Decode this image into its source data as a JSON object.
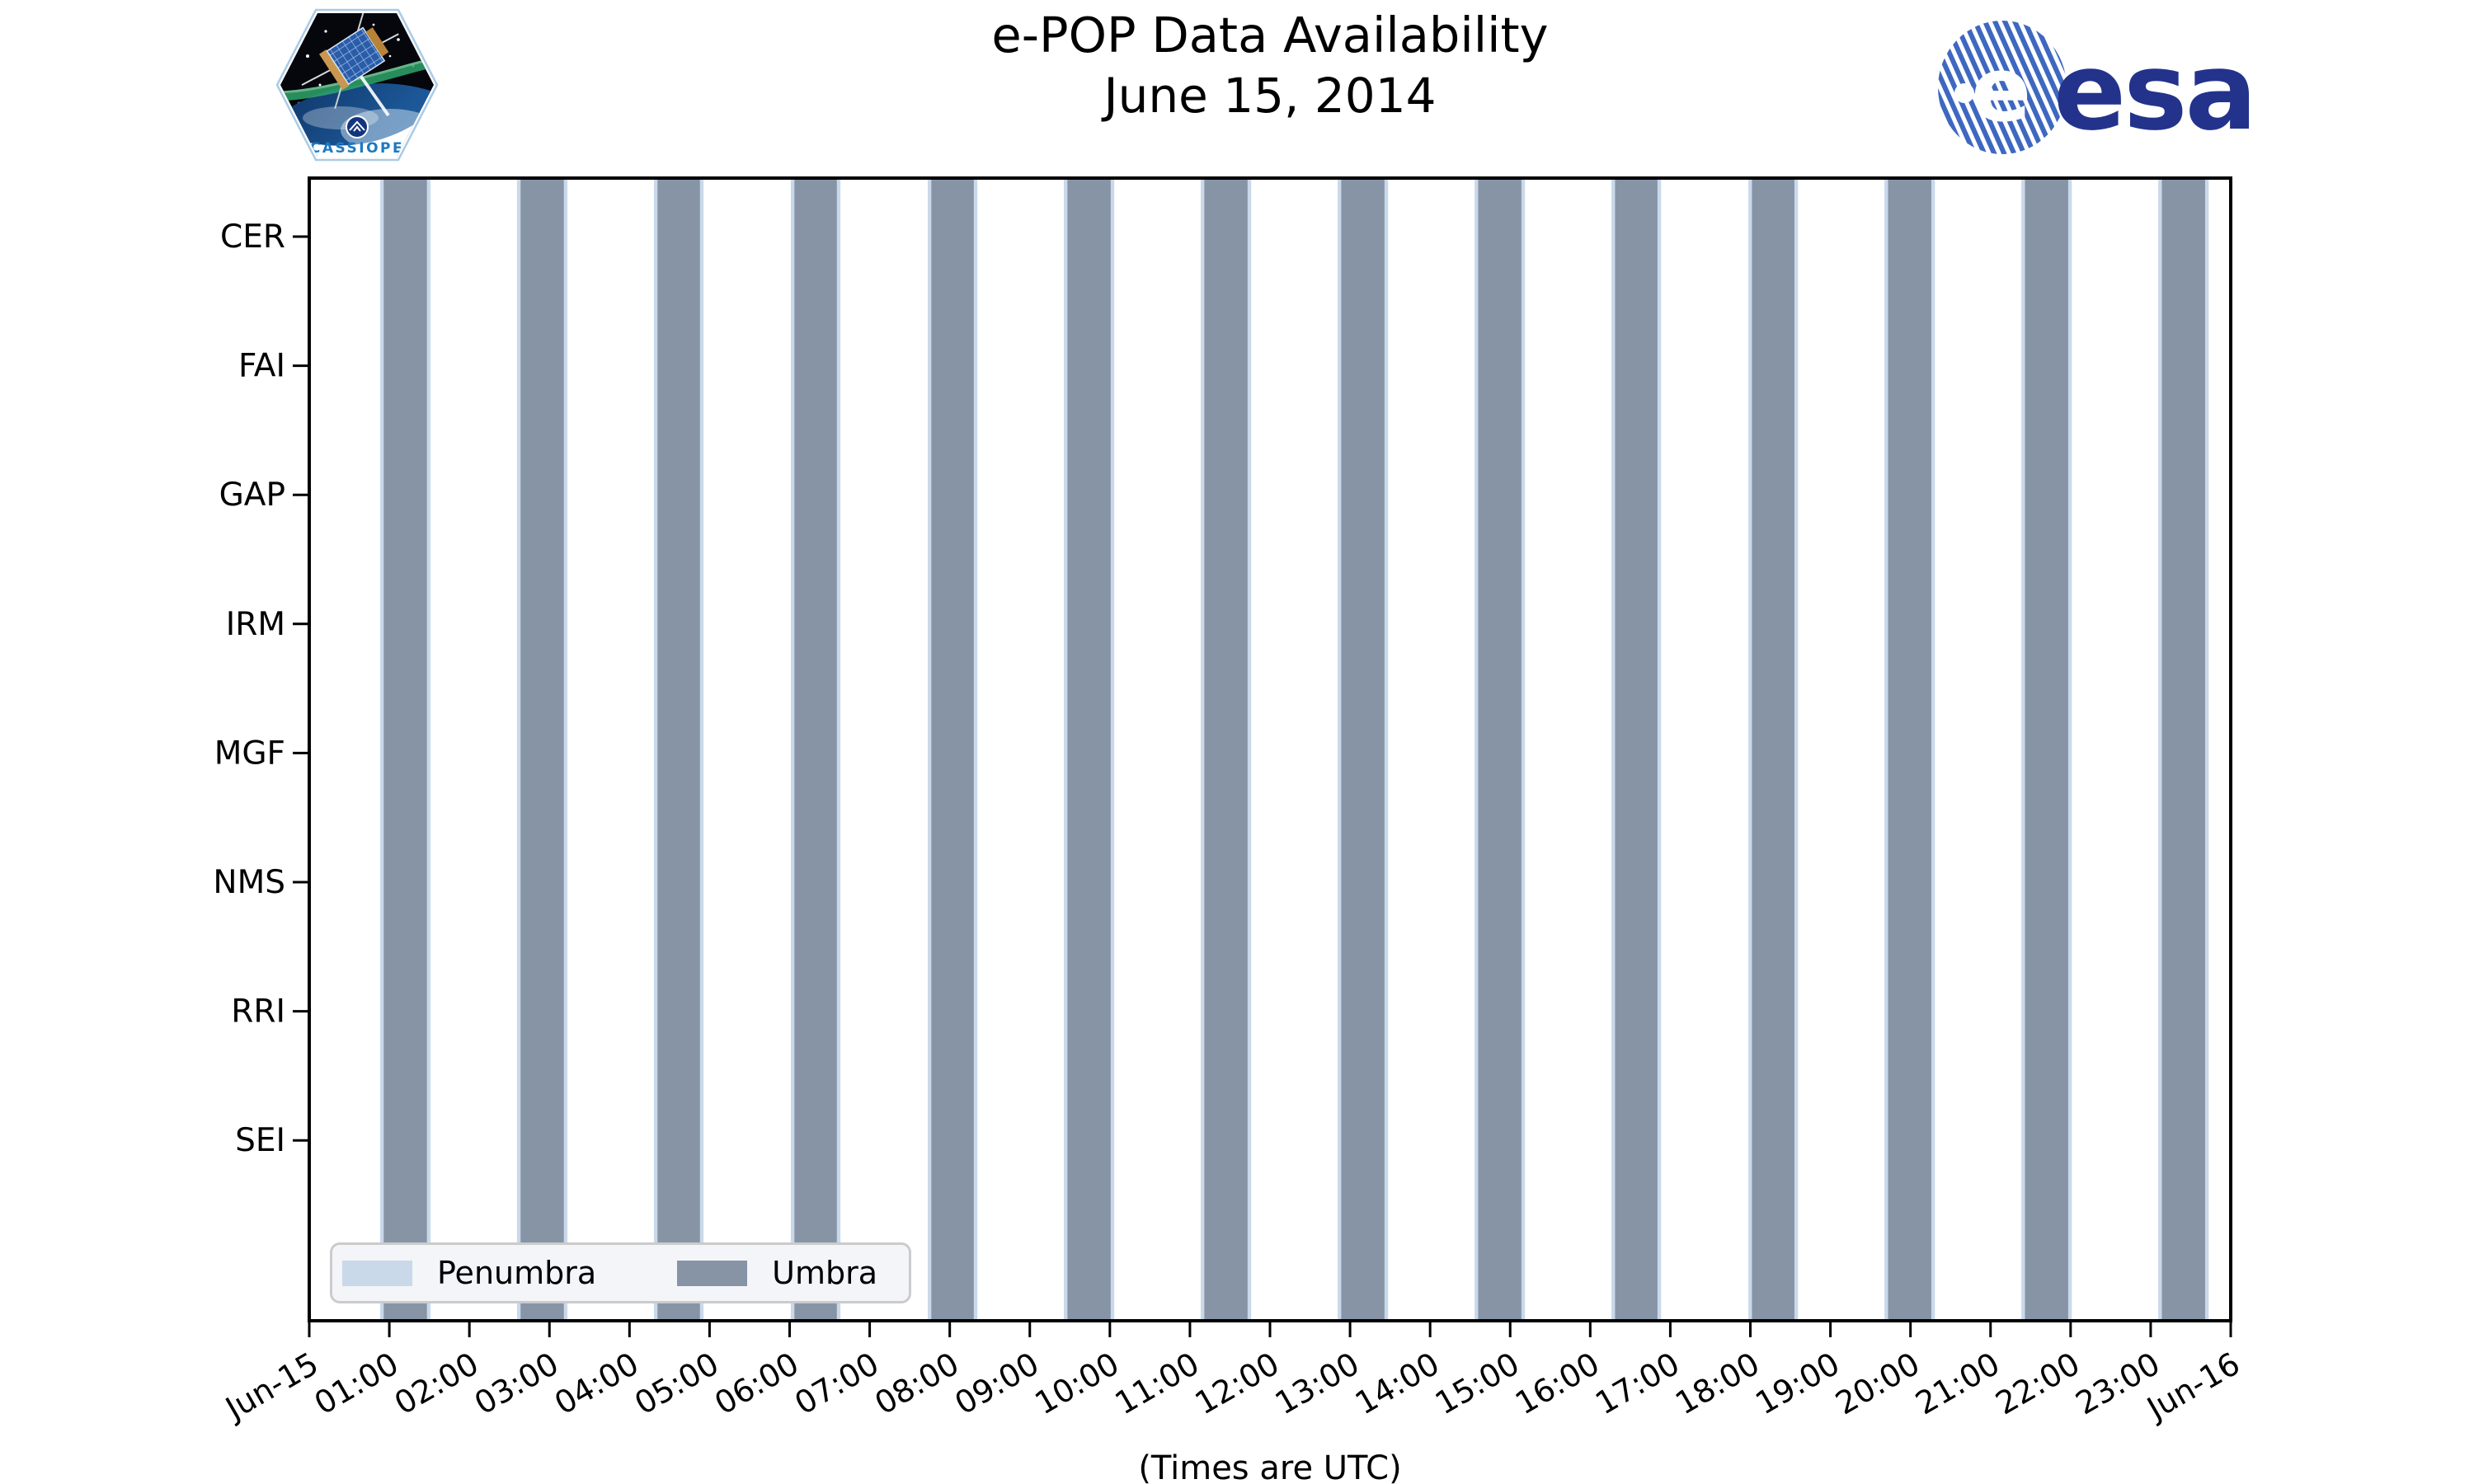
{
  "branding": {
    "mission_patch_label": "CASSIOPE",
    "esa_wordmark": "esa"
  },
  "chart_data": {
    "type": "timeline-bars",
    "title": "e-POP Data Availability",
    "subtitle": "June 15, 2014",
    "xlabel": "(Times are UTC)",
    "instruments": [
      "CER",
      "FAI",
      "GAP",
      "IRM",
      "MGF",
      "NMS",
      "RRI",
      "SEI"
    ],
    "x_axis": {
      "range_hours": [
        0,
        24
      ],
      "tick_labels": [
        "Jun-15",
        "01:00",
        "02:00",
        "03:00",
        "04:00",
        "05:00",
        "06:00",
        "07:00",
        "08:00",
        "09:00",
        "10:00",
        "11:00",
        "12:00",
        "13:00",
        "14:00",
        "15:00",
        "16:00",
        "17:00",
        "18:00",
        "19:00",
        "20:00",
        "21:00",
        "22:00",
        "23:00",
        "Jun-16"
      ]
    },
    "series": [
      {
        "name": "Penumbra",
        "color": "#C9D9EA",
        "note": "thin strips flanking each umbra interval",
        "margin_hours": 0.045
      },
      {
        "name": "Umbra",
        "color": "#8694A6",
        "intervals_hours": [
          [
            0.93,
            1.47
          ],
          [
            2.64,
            3.18
          ],
          [
            4.35,
            4.88
          ],
          [
            6.06,
            6.59
          ],
          [
            7.77,
            8.3
          ],
          [
            9.47,
            10.01
          ],
          [
            11.18,
            11.72
          ],
          [
            12.89,
            13.43
          ],
          [
            14.6,
            15.14
          ],
          [
            16.31,
            16.84
          ],
          [
            18.02,
            18.55
          ],
          [
            19.72,
            20.26
          ],
          [
            21.43,
            21.97
          ],
          [
            23.14,
            23.68
          ]
        ]
      }
    ],
    "legend_position": "lower-left",
    "grid": false
  }
}
